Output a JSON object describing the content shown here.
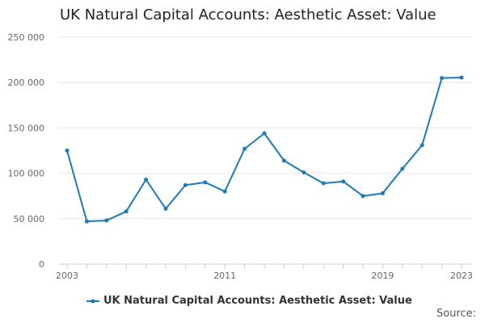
{
  "chart_data": {
    "type": "line",
    "title": "UK Natural Capital Accounts: Aesthetic Asset: Value",
    "xlabel": "",
    "ylabel": "",
    "x": [
      2003,
      2004,
      2005,
      2006,
      2007,
      2008,
      2009,
      2010,
      2011,
      2012,
      2013,
      2014,
      2015,
      2016,
      2017,
      2018,
      2019,
      2020,
      2021,
      2022,
      2023
    ],
    "series": [
      {
        "name": "UK Natural Capital Accounts: Aesthetic Asset: Value",
        "color": "#1d7ab8",
        "values": [
          125000,
          47000,
          48000,
          58000,
          93000,
          61000,
          87000,
          90000,
          80000,
          127000,
          144000,
          114000,
          101000,
          89000,
          91000,
          75000,
          78000,
          105000,
          131000,
          205000,
          205500
        ]
      }
    ],
    "xlim": [
      2003,
      2023
    ],
    "ylim": [
      0,
      250000
    ],
    "x_tick_values": [
      2003,
      2004,
      2005,
      2006,
      2007,
      2008,
      2009,
      2010,
      2011,
      2012,
      2013,
      2014,
      2015,
      2016,
      2017,
      2018,
      2019,
      2020,
      2021,
      2022,
      2023
    ],
    "x_tick_labels": [
      {
        "value": 2003,
        "label": "2003"
      },
      {
        "value": 2011,
        "label": "2011"
      },
      {
        "value": 2019,
        "label": "2019"
      },
      {
        "value": 2023,
        "label": "2023"
      }
    ],
    "y_ticks": [
      {
        "value": 0,
        "label": "0"
      },
      {
        "value": 50000,
        "label": "50 000"
      },
      {
        "value": 100000,
        "label": "100 000"
      },
      {
        "value": 150000,
        "label": "150 000"
      },
      {
        "value": 200000,
        "label": "200 000"
      },
      {
        "value": 250000,
        "label": "250 000"
      }
    ],
    "grid": true,
    "legend_position": "bottom"
  },
  "legend": {
    "label": "UK Natural Capital Accounts: Aesthetic Asset: Value"
  },
  "source": {
    "label": "Source:"
  }
}
